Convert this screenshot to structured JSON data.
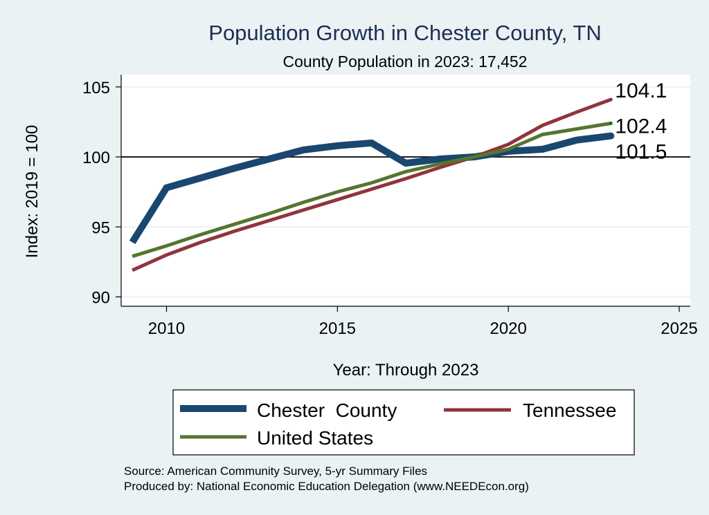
{
  "chart_data": {
    "type": "line",
    "title": "Population Growth in Chester County, TN",
    "subtitle": "County Population in 2023: 17,452",
    "xlabel": "Year: Through 2023",
    "ylabel": "Index: 2019 = 100",
    "xlim": [
      2009,
      2025
    ],
    "ylim": [
      90,
      105
    ],
    "x_ticks": [
      2010,
      2015,
      2020,
      2025
    ],
    "x_tick_labels": [
      "2010",
      "2015",
      "2020",
      "2025"
    ],
    "y_ticks": [
      90,
      95,
      100,
      105
    ],
    "y_tick_labels": [
      "90",
      "95",
      "100",
      "105"
    ],
    "reference_line": 100,
    "grid": true,
    "x": [
      2009,
      2010,
      2011,
      2012,
      2013,
      2014,
      2015,
      2016,
      2017,
      2018,
      2019,
      2020,
      2021,
      2022,
      2023
    ],
    "series": [
      {
        "name": "Chester  County",
        "color": "#1a476f",
        "values": [
          93.9,
          97.8,
          98.5,
          99.2,
          99.85,
          100.5,
          100.8,
          101.0,
          99.55,
          99.85,
          100.0,
          100.4,
          100.55,
          101.2,
          101.5
        ],
        "end_label": "101.5"
      },
      {
        "name": "Tennessee",
        "color": "#90353b",
        "values": [
          91.9,
          93.0,
          93.9,
          94.7,
          95.45,
          96.2,
          96.95,
          97.7,
          98.45,
          99.25,
          100.0,
          100.9,
          102.25,
          103.2,
          104.1
        ],
        "end_label": "104.1"
      },
      {
        "name": "United States",
        "color": "#55752f",
        "values": [
          92.9,
          93.65,
          94.45,
          95.2,
          95.95,
          96.75,
          97.5,
          98.15,
          98.95,
          99.5,
          100.0,
          100.55,
          101.6,
          102.0,
          102.4
        ],
        "end_label": "102.4"
      }
    ],
    "legend": {
      "placement": "bottom",
      "entries": [
        "Chester  County",
        "Tennessee",
        "United States"
      ]
    },
    "notes": [
      "Source: American Community Survey, 5-yr Summary Files",
      "Produced by: National Economic Education Delegation (www.NEEDEcon.org)"
    ]
  }
}
